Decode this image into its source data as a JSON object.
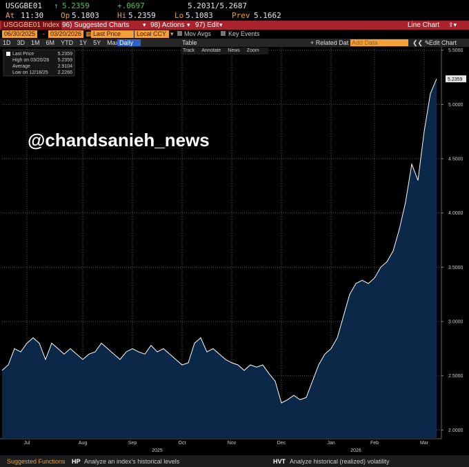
{
  "header": {
    "ticker": "USGGBE01",
    "last": "5.2359",
    "change": "+.0697",
    "bid_ask": "5.2031/5.2687",
    "time_label": "At",
    "time": "11:30",
    "open_label": "Op",
    "open": "5.1803",
    "high_label": "Hi",
    "high": "5.2359",
    "low_label": "Lo",
    "low": "5.1083",
    "prev_label": "Prev",
    "prev": "5.1662"
  },
  "toolbar": {
    "security": "USGGBE01 Index",
    "menus": [
      "96) Suggested Charts",
      "98) Actions",
      "97) Edit"
    ],
    "chart_kind": "Line Chart"
  },
  "settings": {
    "start_date": "06/30/2025",
    "end_date": "03/20/2026",
    "field": "Last Price",
    "currency": "Local CCY",
    "options": [
      "Mov Avgs",
      "Key Events"
    ]
  },
  "range_bar": {
    "periods": [
      "1D",
      "3D",
      "1M",
      "6M",
      "YTD",
      "1Y",
      "5Y",
      "Max"
    ],
    "frequency": "Daily",
    "table": "Table",
    "related": "+ Related Dat",
    "add_data": "Add Data",
    "edit_chart": "Edit Chart"
  },
  "chart_tools": [
    "Track",
    "Annotate",
    "News",
    "Zoom"
  ],
  "watermark": "@chandsanieh_news",
  "footer": {
    "label": "Suggested Functions",
    "functions": [
      {
        "code": "HP",
        "desc": "Analyze an index's historical levels"
      },
      {
        "code": "HVT",
        "desc": "Analyze historical (realized) volatility"
      }
    ]
  },
  "chart_data": {
    "type": "line",
    "color": "#ffffff",
    "fill": "#0c2848",
    "legend": [
      {
        "label": "Last Price",
        "value": "5.2359"
      },
      {
        "label": "High on 03/20/26",
        "value": "5.2359"
      },
      {
        "label": "Average",
        "value": "2.9104"
      },
      {
        "label": "Low on 12/18/25",
        "value": "2.2266"
      }
    ],
    "last_value_label": "5.2359",
    "categories": [
      null,
      null,
      null,
      null,
      "Jul",
      null,
      null,
      null,
      null,
      null,
      null,
      null,
      null,
      "Aug",
      null,
      null,
      null,
      null,
      null,
      null,
      null,
      "Sep",
      null,
      null,
      null,
      null,
      null,
      null,
      null,
      "Oct",
      null,
      null,
      null,
      null,
      null,
      null,
      null,
      "Nov",
      null,
      null,
      null,
      null,
      null,
      null,
      null,
      "Dec",
      null,
      null,
      null,
      null,
      null,
      null,
      null,
      "Jan",
      null,
      null,
      null,
      null,
      null,
      null,
      "Feb",
      null,
      null,
      null,
      null,
      null,
      null,
      null,
      "Mar",
      null,
      null
    ],
    "x_group_labels": [
      null,
      null,
      null,
      null,
      null,
      null,
      null,
      null,
      null,
      null,
      null,
      null,
      null,
      null,
      null,
      null,
      null,
      null,
      null,
      null,
      null,
      null,
      null,
      null,
      null,
      "2025",
      null,
      null,
      null,
      null,
      null,
      null,
      null,
      null,
      null,
      null,
      null,
      null,
      null,
      null,
      null,
      null,
      null,
      null,
      null,
      null,
      null,
      null,
      null,
      null,
      null,
      null,
      null,
      null,
      null,
      null,
      null,
      "2026",
      null,
      null,
      null,
      null,
      null,
      null,
      null,
      null,
      null,
      null,
      null,
      null,
      null
    ],
    "values": [
      2.55,
      2.6,
      2.75,
      2.72,
      2.8,
      2.85,
      2.8,
      2.65,
      2.8,
      2.75,
      2.7,
      2.75,
      2.7,
      2.65,
      2.7,
      2.72,
      2.8,
      2.75,
      2.7,
      2.65,
      2.72,
      2.75,
      2.72,
      2.7,
      2.78,
      2.72,
      2.75,
      2.7,
      2.65,
      2.6,
      2.62,
      2.8,
      2.85,
      2.72,
      2.75,
      2.7,
      2.65,
      2.62,
      2.6,
      2.55,
      2.6,
      2.58,
      2.6,
      2.52,
      2.45,
      2.25,
      2.28,
      2.32,
      2.28,
      2.3,
      2.45,
      2.6,
      2.7,
      2.75,
      2.85,
      3.05,
      3.25,
      3.35,
      3.38,
      3.35,
      3.4,
      3.5,
      3.55,
      3.65,
      3.85,
      4.1,
      4.45,
      4.3,
      4.75,
      5.1,
      5.2359
    ],
    "ylim": [
      1.92,
      5.53
    ],
    "yticks": [
      {
        "value": 2.0,
        "label": "2.0000"
      },
      {
        "value": 2.5,
        "label": "2.5000"
      },
      {
        "value": 3.0,
        "label": "3.0000"
      },
      {
        "value": 3.5,
        "label": "3.5000"
      },
      {
        "value": 4.0,
        "label": "4.0000"
      },
      {
        "value": 4.5,
        "label": "4.5000"
      },
      {
        "value": 5.0,
        "label": "5.0000"
      },
      {
        "value": 5.5,
        "label": "5.5000"
      }
    ],
    "grid": true
  }
}
